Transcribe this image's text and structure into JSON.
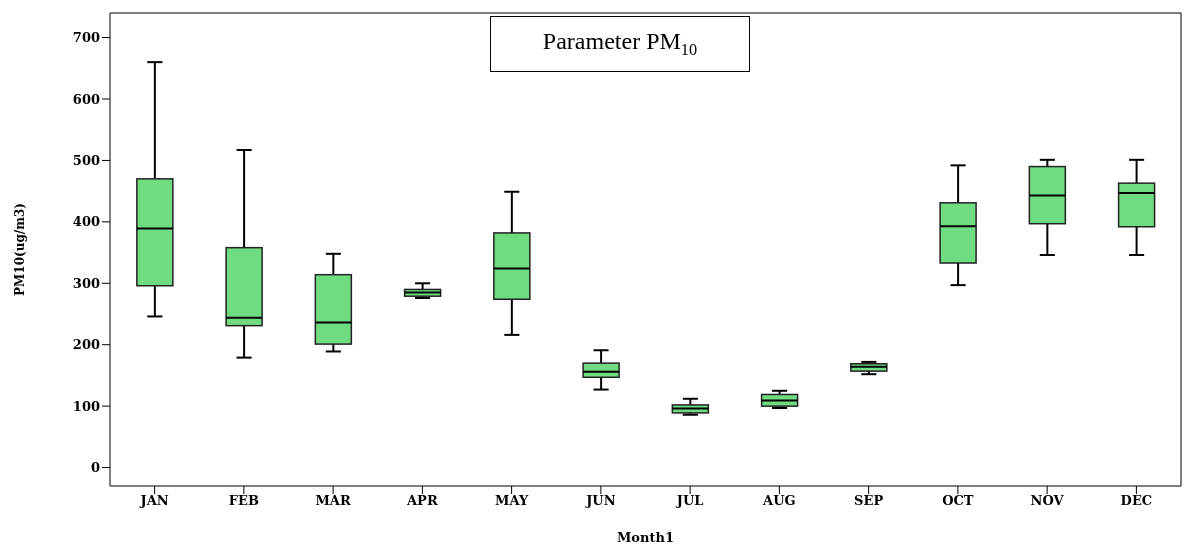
{
  "chart_data": {
    "type": "box",
    "title": "Parameter PM$_{10}$",
    "xlabel": "Month1",
    "ylabel": "PM10(ug/m3)",
    "categories": [
      "JAN",
      "FEB",
      "MAR",
      "APR",
      "MAY",
      "JUN",
      "JUL",
      "AUG",
      "SEP",
      "OCT",
      "NOV",
      "DEC"
    ],
    "ylim": [
      -30,
      740
    ],
    "yticks": [
      0,
      100,
      200,
      300,
      400,
      500,
      600,
      700
    ],
    "grid": false,
    "series": [
      {
        "color": "#70dc82",
        "boxes": [
          {
            "low": 246,
            "q1": 296,
            "median": 389,
            "q3": 470,
            "high": 660
          },
          {
            "low": 179,
            "q1": 231,
            "median": 244,
            "q3": 358,
            "high": 517
          },
          {
            "low": 189,
            "q1": 201,
            "median": 236,
            "q3": 314,
            "high": 348
          },
          {
            "low": 276,
            "q1": 279,
            "median": 285,
            "q3": 290,
            "high": 300
          },
          {
            "low": 216,
            "q1": 274,
            "median": 324,
            "q3": 382,
            "high": 449
          },
          {
            "low": 127,
            "q1": 147,
            "median": 156,
            "q3": 170,
            "high": 191
          },
          {
            "low": 86,
            "q1": 89,
            "median": 96,
            "q3": 102,
            "high": 112
          },
          {
            "low": 97,
            "q1": 100,
            "median": 109,
            "q3": 119,
            "high": 125
          },
          {
            "low": 152,
            "q1": 157,
            "median": 164,
            "q3": 169,
            "high": 172
          },
          {
            "low": 297,
            "q1": 333,
            "median": 393,
            "q3": 431,
            "high": 492
          },
          {
            "low": 346,
            "q1": 397,
            "median": 443,
            "q3": 490,
            "high": 501
          },
          {
            "low": 346,
            "q1": 392,
            "median": 447,
            "q3": 463,
            "high": 501
          }
        ]
      }
    ]
  }
}
